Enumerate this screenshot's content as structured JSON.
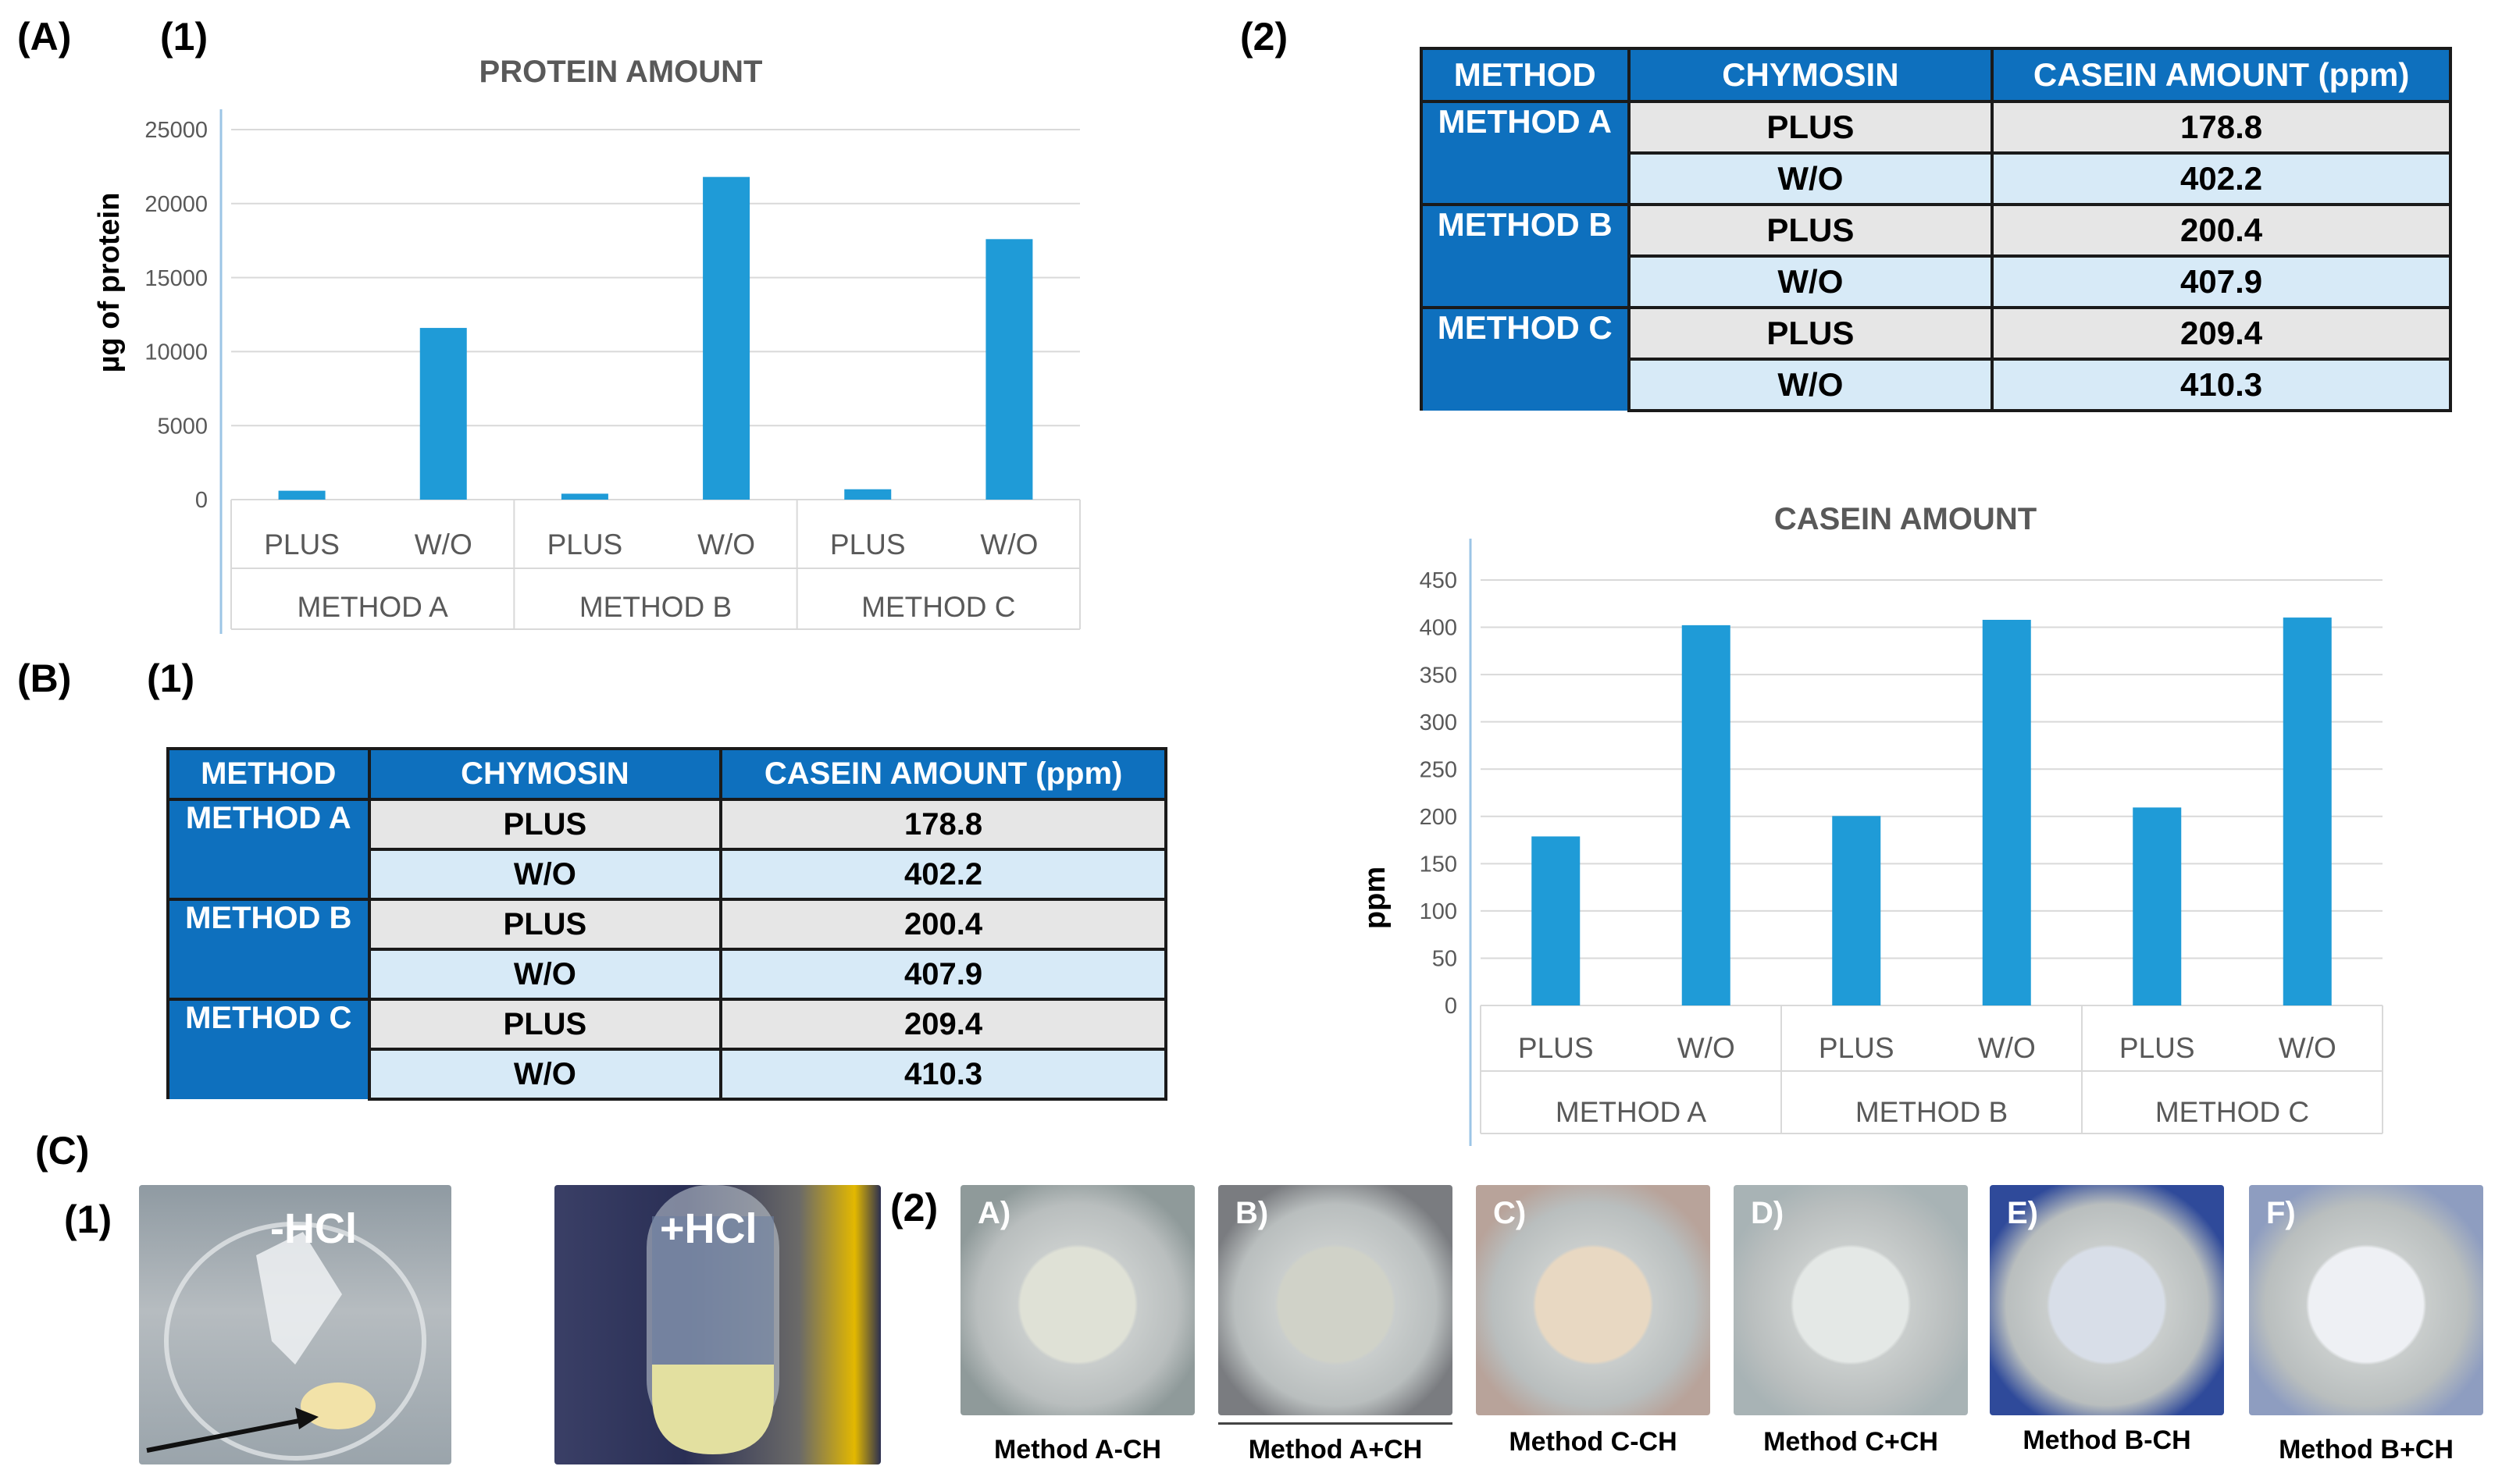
{
  "labels": {
    "A": "(A)",
    "A1": "(1)",
    "A2": "(2)",
    "B": "(B)",
    "B1": "(1)",
    "C": "(C)",
    "C1": "(1)",
    "C2": "(2)"
  },
  "chart_data": [
    {
      "type": "bar",
      "title": "PROTEIN AMOUNT",
      "ylabel": "µg of protein",
      "xlabel": "",
      "groups": [
        "METHOD A",
        "METHOD B",
        "METHOD C"
      ],
      "categories": [
        "PLUS",
        "W/O",
        "PLUS",
        "W/O",
        "PLUS",
        "W/O"
      ],
      "values": [
        600,
        11600,
        400,
        21800,
        700,
        17600
      ],
      "ylim": [
        0,
        25000
      ],
      "yticks": [
        "0",
        "5000",
        "10000",
        "15000",
        "20000",
        "25000"
      ],
      "grid": true,
      "color": "#1f9bd7"
    },
    {
      "type": "bar",
      "title": "CASEIN AMOUNT",
      "ylabel": "ppm",
      "xlabel": "",
      "groups": [
        "METHOD A",
        "METHOD B",
        "METHOD C"
      ],
      "categories": [
        "PLUS",
        "W/O",
        "PLUS",
        "W/O",
        "PLUS",
        "W/O"
      ],
      "values": [
        178.8,
        402.2,
        200.4,
        407.9,
        209.4,
        410.3
      ],
      "ylim": [
        0,
        450
      ],
      "yticks": [
        "0",
        "50",
        "100",
        "150",
        "200",
        "250",
        "300",
        "350",
        "400",
        "450"
      ],
      "grid": true,
      "color": "#1f9bd7"
    }
  ],
  "table": {
    "headers": [
      "METHOD",
      "CHYMOSIN",
      "CASEIN AMOUNT (ppm)"
    ],
    "methods": [
      "METHOD A",
      "METHOD B",
      "METHOD C"
    ],
    "chymosin": [
      "PLUS",
      "W/O",
      "PLUS",
      "W/O",
      "PLUS",
      "W/O"
    ],
    "values": [
      "178.8",
      "402.2",
      "200.4",
      "407.9",
      "209.4",
      "410.3"
    ]
  },
  "photos_c1": [
    "-HCl",
    "+HCl"
  ],
  "photos_c2": {
    "letters": [
      "A)",
      "B)",
      "C)",
      "D)",
      "E)",
      "F)"
    ],
    "captions": [
      "Method A-CH",
      "Method A+CH",
      "Method C-CH",
      "Method C+CH",
      "Method B-CH",
      "Method B+CH"
    ]
  },
  "colors": {
    "bar": "#1f9bd7",
    "table_header": "#0e70be",
    "row_gray": "#e6e6e6",
    "row_blue": "#d7eaf7"
  }
}
